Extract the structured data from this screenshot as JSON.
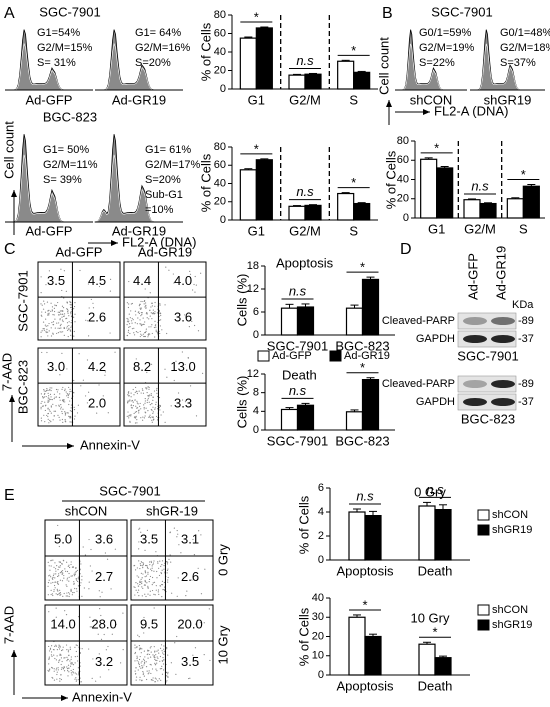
{
  "chart_data": [
    {
      "type": "bar",
      "ylabel": "% of Cells",
      "categories": [
        "G1",
        "G2/M",
        "S"
      ],
      "series": [
        {
          "color": "#ffffff",
          "values": [
            55,
            15,
            30
          ],
          "errors": [
            1.2,
            0.8,
            1
          ]
        },
        {
          "color": "#000000",
          "values": [
            66,
            16,
            18
          ],
          "errors": [
            1,
            0.8,
            1
          ]
        }
      ],
      "ylim": [
        0,
        80
      ],
      "yticks": [
        0,
        20,
        40,
        60,
        80
      ],
      "annotations": [
        "*",
        "n.s",
        "*"
      ],
      "dividers": true
    },
    {
      "type": "bar",
      "ylabel": "% of Cells",
      "categories": [
        "G1",
        "G2/M",
        "S"
      ],
      "series": [
        {
          "color": "#ffffff",
          "values": [
            55,
            15,
            29
          ],
          "errors": [
            1.2,
            0.8,
            1
          ]
        },
        {
          "color": "#000000",
          "values": [
            66,
            16,
            18
          ],
          "errors": [
            1,
            0.8,
            1
          ]
        }
      ],
      "ylim": [
        0,
        80
      ],
      "yticks": [
        0,
        20,
        40,
        60,
        80
      ],
      "annotations": [
        "*",
        "n.s",
        "*"
      ],
      "dividers": true
    },
    {
      "type": "bar",
      "ylabel": "% of Cells",
      "categories": [
        "G1",
        "G2/M",
        "S"
      ],
      "series": [
        {
          "color": "#ffffff",
          "values": [
            61,
            19,
            20
          ],
          "errors": [
            1.5,
            0.8,
            1
          ]
        },
        {
          "color": "#000000",
          "values": [
            52,
            15,
            33
          ],
          "errors": [
            1.5,
            0.8,
            1.8
          ]
        }
      ],
      "ylim": [
        0,
        80
      ],
      "yticks": [
        0,
        20,
        40,
        60,
        80
      ],
      "annotations": [
        "*",
        "n.s",
        "*"
      ],
      "dividers": true
    },
    {
      "type": "bar",
      "title": "Apoptosis",
      "ylabel": "Cells (%)",
      "categories": [
        "SGC-7901",
        "BGC-823"
      ],
      "series": [
        {
          "name": "Ad-GFP",
          "color": "#ffffff",
          "values": [
            7,
            7
          ],
          "errors": [
            1,
            0.8
          ]
        },
        {
          "name": "Ad-GR19",
          "color": "#000000",
          "values": [
            7.3,
            14.5
          ],
          "errors": [
            0.8,
            0.6
          ]
        }
      ],
      "ylim": [
        0,
        18
      ],
      "yticks": [
        0,
        6,
        12,
        18
      ],
      "annotations": [
        "n.s",
        "*"
      ],
      "legend": "bottom"
    },
    {
      "type": "bar",
      "title": "Death",
      "ylabel": "Cells (%)",
      "categories": [
        "SGC-7901",
        "BGC-823"
      ],
      "series": [
        {
          "color": "#ffffff",
          "values": [
            4.4,
            3.9
          ],
          "errors": [
            0.4,
            0.4
          ]
        },
        {
          "color": "#000000",
          "values": [
            5.3,
            10.8
          ],
          "errors": [
            0.4,
            0.4
          ]
        }
      ],
      "ylim": [
        0,
        12
      ],
      "yticks": [
        0,
        4,
        8,
        12
      ],
      "annotations": [
        "n.s",
        "*"
      ]
    },
    {
      "type": "bar",
      "title": "0 Gry",
      "ylabel": "% of Cells",
      "categories": [
        "Apoptosis",
        "Death"
      ],
      "series": [
        {
          "name": "shCON",
          "color": "#ffffff",
          "values": [
            4,
            4.5
          ],
          "errors": [
            0.25,
            0.3
          ]
        },
        {
          "name": "shGR19",
          "color": "#000000",
          "values": [
            3.7,
            4.2
          ],
          "errors": [
            0.35,
            0.4
          ]
        }
      ],
      "ylim": [
        0,
        6
      ],
      "yticks": [
        0,
        2,
        4,
        6
      ],
      "annotations": [
        "n.s",
        "n.s"
      ],
      "legend": "right"
    },
    {
      "type": "bar",
      "title": "10 Gry",
      "ylabel": "% of Cells",
      "categories": [
        "Apoptosis",
        "Death"
      ],
      "series": [
        {
          "name": "shCON",
          "color": "#ffffff",
          "values": [
            30,
            16
          ],
          "errors": [
            1.2,
            1
          ]
        },
        {
          "name": "shGR19",
          "color": "#000000",
          "values": [
            20,
            9
          ],
          "errors": [
            1.2,
            0.8
          ]
        }
      ],
      "ylim": [
        0,
        40
      ],
      "yticks": [
        0,
        10,
        20,
        30,
        40
      ],
      "annotations": [
        "*",
        "*"
      ],
      "legend": "right"
    }
  ],
  "A": {
    "letter": "A",
    "top": {
      "title": "SGC-7901",
      "samples": [
        {
          "name": "Ad-GFP",
          "stats": [
            "G1=54%",
            "G2/M=15%",
            "S= 31%"
          ]
        },
        {
          "name": "Ad-GR19",
          "stats": [
            "G1= 64%",
            "G2/M=16%",
            "S=20%"
          ]
        }
      ]
    },
    "bottom": {
      "title": "BGC-823",
      "samples": [
        {
          "name": "Ad-GFP",
          "stats": [
            "G1= 50%",
            "G2/M=11%",
            "S= 39%"
          ]
        },
        {
          "name": "Ad-GR19",
          "stats": [
            "G1= 61%",
            "G2/M=17%",
            "S=20%",
            "Sub-G1",
            "=10%"
          ]
        }
      ]
    },
    "y_label": "Cell count",
    "x_label": "FL2-A (DNA)"
  },
  "B": {
    "letter": "B",
    "title": "SGC-7901",
    "samples": [
      {
        "name": "shCON",
        "stats": [
          "G0/1=59%",
          "G2/M=19%",
          "S=22%"
        ]
      },
      {
        "name": "shGR19",
        "stats": [
          "G0/1=48%",
          "G2/M=18%",
          "S=37%"
        ]
      }
    ],
    "y_label": "Cell count",
    "x_label": "FL2-A (DNA)"
  },
  "C": {
    "letter": "C",
    "columns": [
      "Ad-GFP",
      "Ad-GR19"
    ],
    "rows": [
      "SGC-7901",
      "BGC-823"
    ],
    "plots": [
      [
        "3.5",
        "4.5",
        "2.6"
      ],
      [
        "4.4",
        "4.0",
        "3.6"
      ],
      [
        "3.0",
        "4.2",
        "2.0"
      ],
      [
        "8.2",
        "13.0",
        "3.3"
      ]
    ],
    "y_label": "7-AAD",
    "x_label": "Annexin-V"
  },
  "D": {
    "letter": "D",
    "lanes": [
      "Ad-GFP",
      "Ad-GR19"
    ],
    "unit": "KDa",
    "blots": [
      {
        "cell_line": "SGC-7901",
        "rows": [
          {
            "name": "Cleaved-PARP",
            "size": "-89"
          },
          {
            "name": "GAPDH",
            "size": "-37"
          }
        ]
      },
      {
        "cell_line": "BGC-823",
        "rows": [
          {
            "name": "Cleaved-PARP",
            "size": "-89"
          },
          {
            "name": "GAPDH",
            "size": "-37"
          }
        ]
      }
    ]
  },
  "E": {
    "letter": "E",
    "group": "SGC-7901",
    "columns": [
      "shCON",
      "shGR-19"
    ],
    "rows": [
      "0 Gry",
      "10 Gry"
    ],
    "plots": [
      [
        "5.0",
        "3.6",
        "2.7"
      ],
      [
        "3.5",
        "3.1",
        "2.6"
      ],
      [
        "14.0",
        "28.0",
        "3.2"
      ],
      [
        "9.5",
        "20.0",
        "3.5"
      ]
    ],
    "y_label": "7-AAD",
    "x_label": "Annexin-V"
  }
}
